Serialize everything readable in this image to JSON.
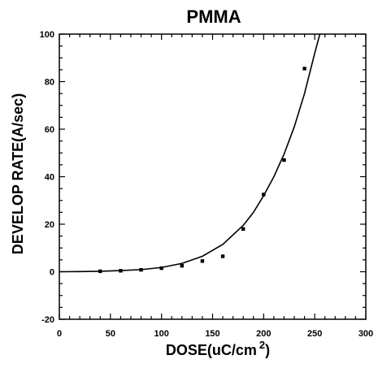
{
  "chart_data": {
    "type": "scatter",
    "title": "PMMA",
    "xlabel_main": "DOSE(uC/cm",
    "xlabel_sup": "2",
    "xlabel_end": ")",
    "ylabel": "DEVELOP RATE(A/sec)",
    "xlim": [
      0,
      300
    ],
    "ylim": [
      -20,
      100
    ],
    "x_ticks": [
      0,
      50,
      100,
      150,
      200,
      250,
      300
    ],
    "y_ticks": [
      -20,
      0,
      20,
      40,
      60,
      80,
      100
    ],
    "x_tick_labels": [
      "0",
      "50",
      "100",
      "150",
      "200",
      "250",
      "300"
    ],
    "y_tick_labels": [
      "-20",
      "0",
      "20",
      "40",
      "60",
      "80",
      "100"
    ],
    "grid": false,
    "legend": "none",
    "marker_color": "#000000",
    "line_color": "#000000",
    "series": [
      {
        "kind": "points",
        "x": [
          40,
          60,
          80,
          100,
          120,
          140,
          160,
          180,
          200,
          220,
          240
        ],
        "y": [
          0.2,
          0.4,
          0.8,
          1.5,
          2.5,
          4.5,
          6.5,
          18,
          32.5,
          47,
          85.5
        ]
      },
      {
        "kind": "fit-line",
        "x": [
          0,
          20,
          40,
          60,
          80,
          100,
          120,
          140,
          160,
          180,
          190,
          200,
          210,
          220,
          230,
          240,
          250,
          255
        ],
        "y": [
          0,
          0.05,
          0.2,
          0.5,
          0.9,
          1.8,
          3.5,
          6.5,
          11.5,
          19.5,
          25,
          32,
          40,
          49.5,
          61,
          75,
          92,
          100
        ]
      }
    ]
  }
}
